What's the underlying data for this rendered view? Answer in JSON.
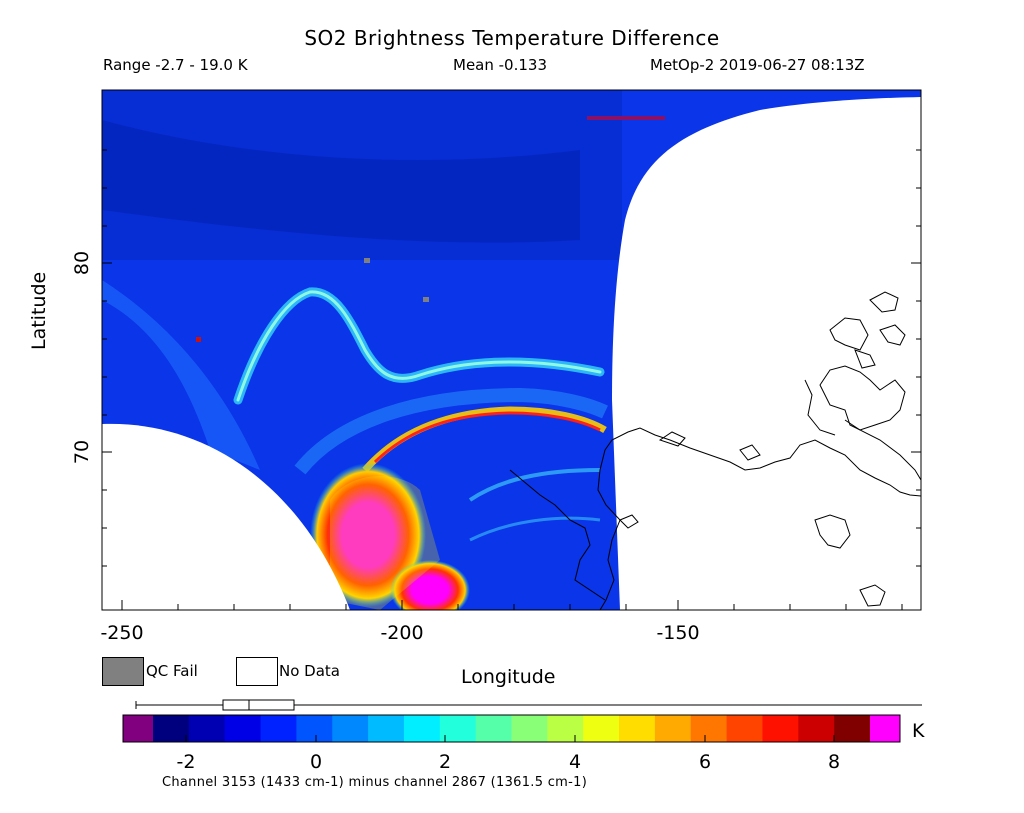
{
  "header": {
    "title": "SO2 Brightness Temperature Difference",
    "range_text": "Range -2.7 - 19.0 K",
    "mean_text": "Mean -0.133",
    "satellite_text": "MetOp-2 2019-06-27 08:13Z"
  },
  "axes": {
    "xlabel": "Longitude",
    "ylabel": "Latitude",
    "x_ticks": [
      "-250",
      "-200",
      "-150"
    ],
    "y_ticks": [
      "70",
      "80"
    ]
  },
  "legend": {
    "qc_fail_label": "QC Fail",
    "no_data_label": "No Data",
    "qc_fail_color": "#808080",
    "no_data_color": "#ffffff"
  },
  "colorbar": {
    "ticks": [
      "-2",
      "0",
      "2",
      "4",
      "6",
      "8"
    ],
    "unit": "K",
    "colors": [
      "#800080",
      "#00007f",
      "#0000b3",
      "#0000e6",
      "#0022ff",
      "#0055ff",
      "#0088ff",
      "#00bbff",
      "#00eeff",
      "#22ffdd",
      "#55ffaa",
      "#88ff77",
      "#bbff44",
      "#eeff11",
      "#ffdd00",
      "#ffaa00",
      "#ff7700",
      "#ff4400",
      "#ff1100",
      "#cc0000",
      "#800000",
      "#ff00ff"
    ]
  },
  "footnote": "Channel 3153 (1433 cm-1) minus channel 2867 (1361.5 cm-1)"
}
